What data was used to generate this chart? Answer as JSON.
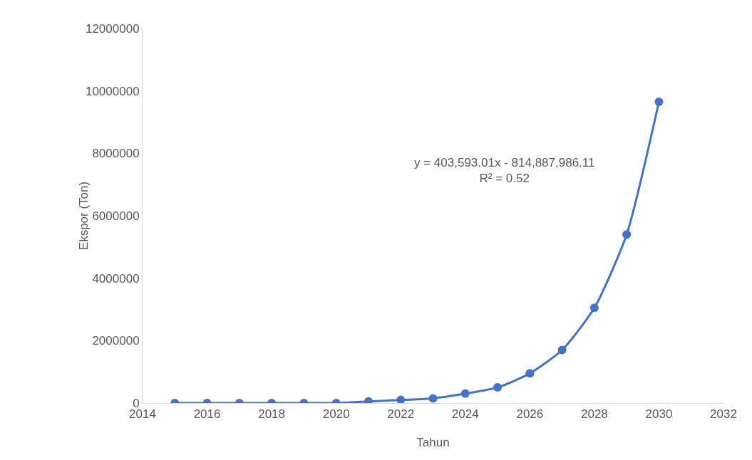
{
  "chart_data": {
    "type": "line",
    "xlabel": "Tahun",
    "ylabel": "Ekspor (Ton)",
    "x": [
      2015,
      2016,
      2017,
      2018,
      2019,
      2020,
      2021,
      2022,
      2023,
      2024,
      2025,
      2026,
      2027,
      2028,
      2029,
      2030
    ],
    "series": [
      {
        "color": "#4472c4",
        "values": [
          0,
          0,
          0,
          0,
          0,
          0,
          50000,
          100000,
          150000,
          300000,
          500000,
          950000,
          1700000,
          3050000,
          5400000,
          9650000
        ]
      }
    ],
    "xlim": [
      2014,
      2032
    ],
    "xticks": [
      2014,
      2016,
      2018,
      2020,
      2022,
      2024,
      2026,
      2028,
      2030,
      2032
    ],
    "ylim": [
      0,
      12000000
    ],
    "yticks": [
      0,
      2000000,
      4000000,
      6000000,
      8000000,
      10000000,
      12000000
    ],
    "grid": false,
    "marker": "circle",
    "line_style": "solid",
    "annotations": [
      "y = 403,593.01x - 814,887,986.11\nR² = 0.52"
    ]
  }
}
